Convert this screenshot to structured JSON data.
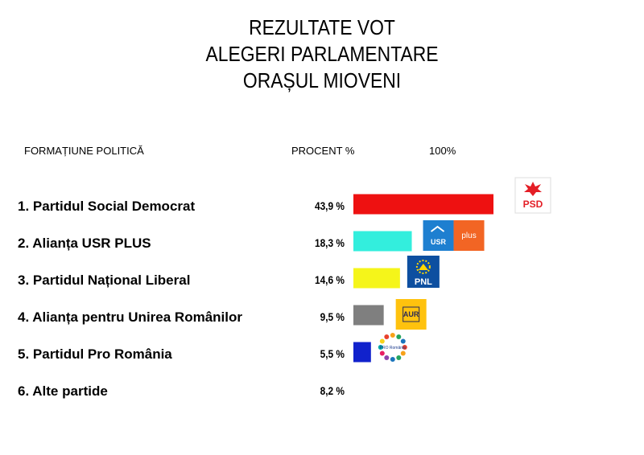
{
  "title_lines": [
    "REZULTATE VOT",
    "ALEGERI PARLAMENTARE",
    "ORAȘUL MIOVENI"
  ],
  "headers": {
    "party": "FORMAȚIUNE POLITICĂ",
    "percent": "PROCENT %",
    "full_scale": "100%"
  },
  "logos": {
    "psd": "PSD",
    "usr": "USR",
    "plus": "plus",
    "pnl": "PNL",
    "aur": "AUR",
    "pro": "PRO România"
  },
  "colors": {
    "psd": "#ee1111",
    "usr_plus": "#33eedd",
    "pnl": "#f5f51a",
    "aur": "#7f7f7f",
    "pro_romania": "#1122cc"
  },
  "chart_data": {
    "type": "bar",
    "orientation": "horizontal",
    "categories": [
      "1. Partidul Social Democrat",
      "2. Alianța USR PLUS",
      "3. Partidul Național Liberal",
      "4. Alianța pentru Unirea Românilor",
      "5. Partidul Pro România",
      "6. Alte partide"
    ],
    "values": [
      43.9,
      18.3,
      14.6,
      9.5,
      5.5,
      8.2
    ],
    "value_labels": [
      "43,9 %",
      "18,3 %",
      "14,6 %",
      "9,5 %",
      "5,5 %",
      "8,2 %"
    ],
    "bar_colors": [
      "#ee1111",
      "#33eedd",
      "#f5f51a",
      "#7f7f7f",
      "#1122cc",
      null
    ],
    "logos": [
      "psd",
      "usr",
      "pnl",
      "aur",
      "pro",
      null
    ],
    "xlim": [
      0,
      100
    ],
    "grid": false,
    "legend": false
  }
}
